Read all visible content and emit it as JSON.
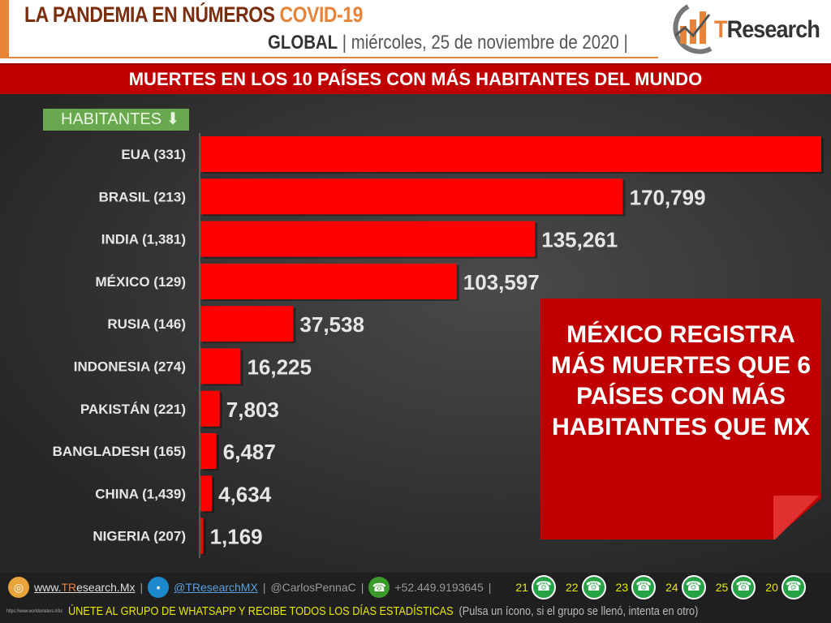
{
  "header": {
    "title": "LA PANDEMIA EN NÚMEROS",
    "title_accent": "COVID-19",
    "scope": "GLOBAL",
    "sep": "|",
    "date": "miércoles, 25 de noviembre de 2020",
    "date_sep": "|",
    "logo_t": "T",
    "logo_rest": "Research"
  },
  "banner": "MUERTES EN LOS 10 PAÍSES CON MÁS HABITANTES DEL MUNDO",
  "habitantes_label": "HABITANTES",
  "callout": "MÉXICO REGISTRA MÁS MUERTES QUE 6 PAÍSES CON MÁS HABITANTES QUE MX",
  "chart_data": {
    "type": "bar",
    "orientation": "horizontal",
    "title": "MUERTES EN LOS 10 PAÍSES CON MÁS HABITANTES DEL MUNDO",
    "categories": [
      "EUA (331)",
      "BRASIL (213)",
      "INDIA (1,381)",
      "MÉXICO (129)",
      "RUSIA (146)",
      "INDONESIA (274)",
      "PAKISTÁN (221)",
      "BANGLADESH (165)",
      "CHINA (1,439)",
      "NIGERIA (207)"
    ],
    "values": [
      251000,
      170799,
      135261,
      103597,
      37538,
      16225,
      7803,
      6487,
      4634,
      1169
    ],
    "labels": [
      "",
      "170,799",
      "135,261",
      "103,597",
      "37,538",
      "16,225",
      "7,803",
      "6,487",
      "4,634",
      "1,169"
    ],
    "bar_color": "#ff0000"
  },
  "footer": {
    "web_pre": "www.",
    "web_t": "TR",
    "web_rest": "esearch.Mx",
    "twitter": "@TResearchMX",
    "carlos": "@CarlosPennaC",
    "phone": "+52.449.9193645",
    "groups": [
      "21",
      "22",
      "23",
      "24",
      "25",
      "20"
    ],
    "source": "https://www.worldometers.info/",
    "cta": "ÚNETE AL GRUPO DE WHATSAPP Y RECIBE TODOS LOS DÍAS ESTADÍSTICAS",
    "cta_note": "(Pulsa un ícono, si el grupo se llenó, intenta en otro)"
  }
}
